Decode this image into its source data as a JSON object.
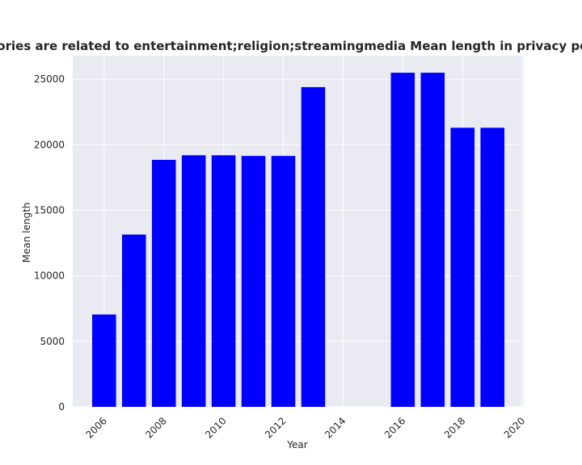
{
  "chart_data": {
    "type": "bar",
    "title": "categories are related to entertainment;religion;streamingmedia Mean length in privacy policies",
    "xlabel": "Year",
    "ylabel": "Mean length",
    "x": [
      2006,
      2007,
      2008,
      2009,
      2010,
      2011,
      2012,
      2013,
      2016,
      2017,
      2018,
      2019
    ],
    "values": [
      7050,
      13150,
      18850,
      19200,
      19200,
      19150,
      19150,
      24400,
      25500,
      25500,
      21300,
      21300
    ],
    "xlim": [
      2004.95,
      2020.05
    ],
    "ylim": [
      0,
      26800
    ],
    "xticks": [
      "2006",
      "2008",
      "2010",
      "2012",
      "2014",
      "2016",
      "2018",
      "2020"
    ],
    "yticks": [
      "0",
      "5000",
      "10000",
      "15000",
      "20000",
      "25000"
    ],
    "grid": true,
    "bar_color": "#0000ff",
    "background": "#eaeaf2"
  }
}
